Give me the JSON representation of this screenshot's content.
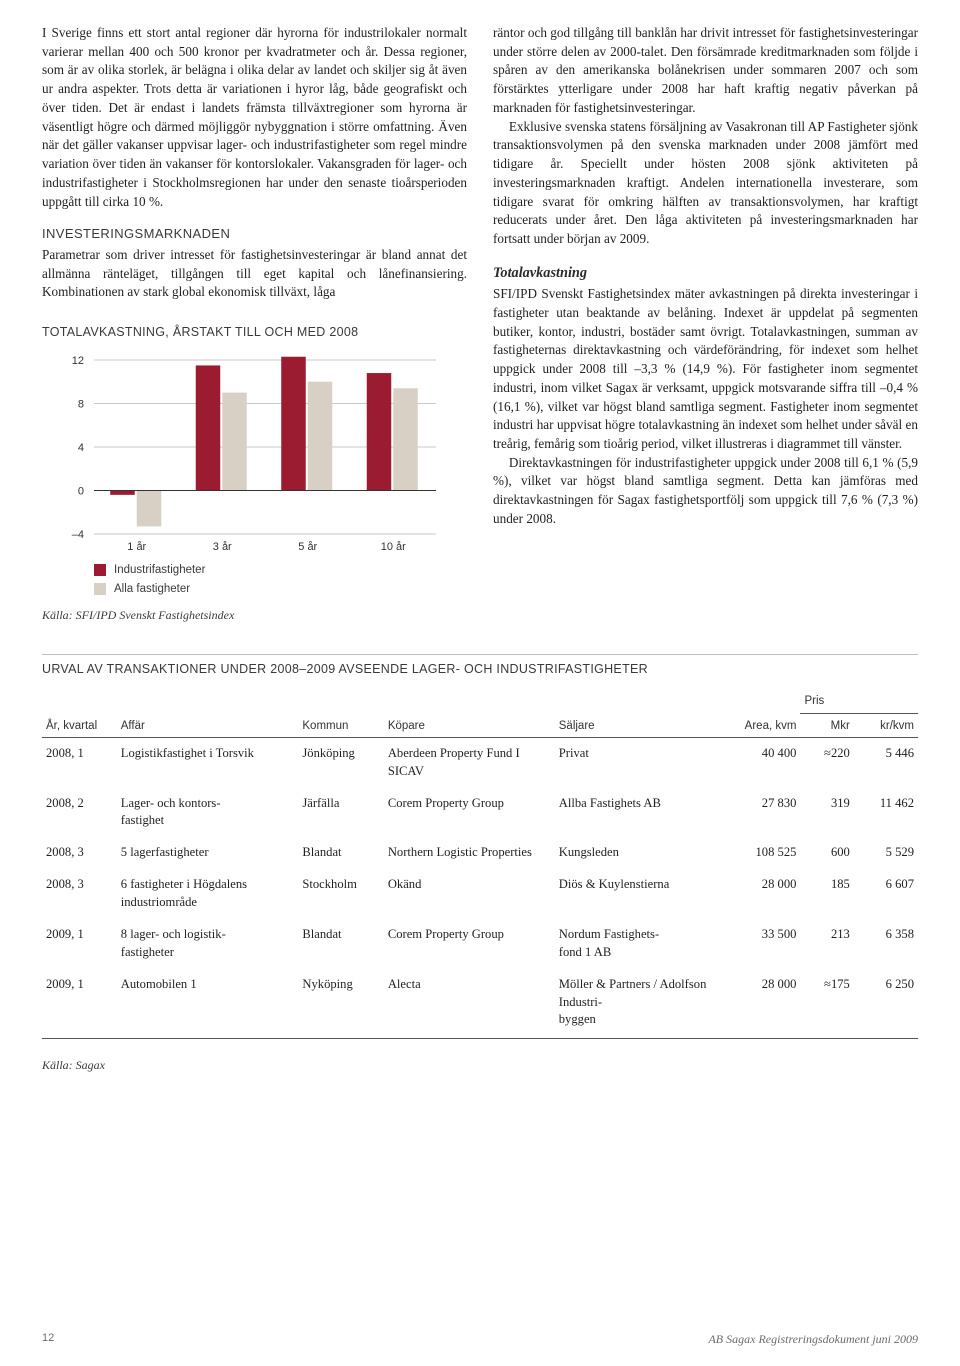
{
  "leftCol": {
    "para1": "I Sverige finns ett stort antal regioner där hyrorna för industrilokaler normalt varierar mellan 400 och 500 kronor per kvadratmeter och år. Dessa regioner, som är av olika storlek, är belägna i olika delar av landet och skiljer sig åt även ur andra aspekter. Trots detta är variationen i hyror låg, både geografiskt och över tiden. Det är endast i landets främsta tillväxtregioner som hyrorna är väsentligt högre och därmed möjliggör nybyggnation i större omfattning. Även när det gäller vakanser uppvisar lager- och industrifastigheter som regel mindre variation över tiden än vakanser för kontorslokaler. Vakansgraden för lager- och industrifastigheter i Stockholmsregionen har under den senaste tioårsperioden uppgått till cirka 10 %.",
    "heading1": "INVESTERINGSMARKNADEN",
    "para2": "Parametrar som driver intresset för fastighetsinvesteringar är bland annat det allmänna ränteläget, tillgången till eget kapital och lånefinansiering. Kombinationen av stark global ekonomisk tillväxt, låga"
  },
  "rightCol": {
    "para1": "räntor och god tillgång till banklån har drivit intresset för fastighetsinvesteringar under större delen av 2000-talet. Den försämrade kreditmarknaden som följde i spåren av den amerikanska bolånekrisen under sommaren 2007 och som förstärktes ytterligare under 2008 har haft kraftig negativ påverkan på marknaden för fastighetsinvesteringar.",
    "para2": "Exklusive svenska statens försäljning av Vasakronan till AP Fastigheter sjönk transaktionsvolymen på den svenska marknaden under 2008 jämfört med tidigare år. Speciellt under hösten 2008 sjönk aktiviteten på investeringsmarknaden kraftigt. Andelen internationella investerare, som tidigare svarat för omkring hälften av transaktionsvolymen, har kraftigt reducerats under året. Den låga aktiviteten på investeringsmarknaden har fortsatt under början av 2009.",
    "heading2": "Totalavkastning",
    "para3": "SFI/IPD Svenskt Fastighetsindex mäter avkastningen på direkta investeringar i fastigheter utan beaktande av belåning. Indexet är uppdelat på segmenten butiker, kontor, industri, bostäder samt övrigt. Totalavkastningen, summan av fastigheternas direktavkastning och värdeförändring, för indexet som helhet uppgick under 2008 till –3,3 % (14,9 %). För fastigheter inom segmentet industri, inom vilket Sagax är verksamt, uppgick motsvarande siffra till –0,4 % (16,1 %), vilket var högst bland samtliga segment. Fastigheter inom segmentet industri har uppvisat högre totalavkastning än indexet som helhet under såväl en treårig, femårig som tioårig period, vilket illustreras i diagrammet till vänster.",
    "para4": "Direktavkastningen för industrifastigheter uppgick under 2008 till 6,1 % (5,9 %), vilket var högst bland samtliga segment. Detta kan jämföras med direktavkastningen för Sagax fastighetsportfölj som uppgick till 7,6 % (7,3 %) under 2008."
  },
  "chart": {
    "title": "TOTALAVKASTNING, ÅRSTAKT TILL OCH MED 2008",
    "categories": [
      "1 år",
      "3 år",
      "5 år",
      "10 år"
    ],
    "series": [
      {
        "name": "Industrifastigheter",
        "color": "#9b1b30",
        "values": [
          -0.4,
          11.5,
          12.3,
          10.8
        ]
      },
      {
        "name": "Alla fastigheter",
        "color": "#d8d0c4",
        "values": [
          -3.3,
          9.0,
          10.0,
          9.4
        ]
      }
    ],
    "yAxis": {
      "min": -4,
      "max": 12,
      "step": 4,
      "unit": "%"
    },
    "source": "Källa: SFI/IPD Svenskt Fastighetsindex",
    "bg": "#ffffff",
    "gridColor": "#9a958b",
    "axisColor": "#333333",
    "labelFont": "11px Helvetica, Arial, sans-serif",
    "barGroupWidth": 0.62
  },
  "table": {
    "title": "URVAL AV TRANSAKTIONER UNDER 2008–2009 AVSEENDE LAGER- OCH INDUSTRIFASTIGHETER",
    "prisLabel": "Pris",
    "columns": [
      "År, kvartal",
      "Affär",
      "Kommun",
      "Köpare",
      "Säljare",
      "Area, kvm",
      "Mkr",
      "kr/kvm"
    ],
    "rows": [
      [
        "2008, 1",
        "Logistikfastighet i Torsvik",
        "Jönköping",
        "Aberdeen Property Fund I SICAV",
        "Privat",
        "40 400",
        "≈220",
        "5 446"
      ],
      [
        "2008, 2",
        "Lager- och kontors-\nfastighet",
        "Järfälla",
        "Corem Property Group",
        "Allba Fastighets AB",
        "27 830",
        "319",
        "11 462"
      ],
      [
        "2008, 3",
        "5 lagerfastigheter",
        "Blandat",
        "Northern Logistic Properties",
        "Kungsleden",
        "108 525",
        "600",
        "5 529"
      ],
      [
        "2008, 3",
        "6 fastigheter i Högdalens industriområde",
        "Stockholm",
        "Okänd",
        "Diös & Kuylenstierna",
        "28 000",
        "185",
        "6 607"
      ],
      [
        "2009, 1",
        "8 lager- och logistik-\nfastigheter",
        "Blandat",
        "Corem Property Group",
        "Nordum Fastighets-\nfond 1 AB",
        "33 500",
        "213",
        "6 358"
      ],
      [
        "2009, 1",
        "Automobilen 1",
        "Nyköping",
        "Alecta",
        "Möller & Partners / Adolfson Industri-\nbyggen",
        "28 000",
        "≈175",
        "6 250"
      ]
    ],
    "source": "Källa: Sagax",
    "colWidths": [
      "70px",
      "170px",
      "80px",
      "160px",
      "160px",
      "70px",
      "50px",
      "60px"
    ]
  },
  "footer": {
    "pageNum": "12",
    "docLine": "AB Sagax Registreringsdokument juni 2009"
  }
}
